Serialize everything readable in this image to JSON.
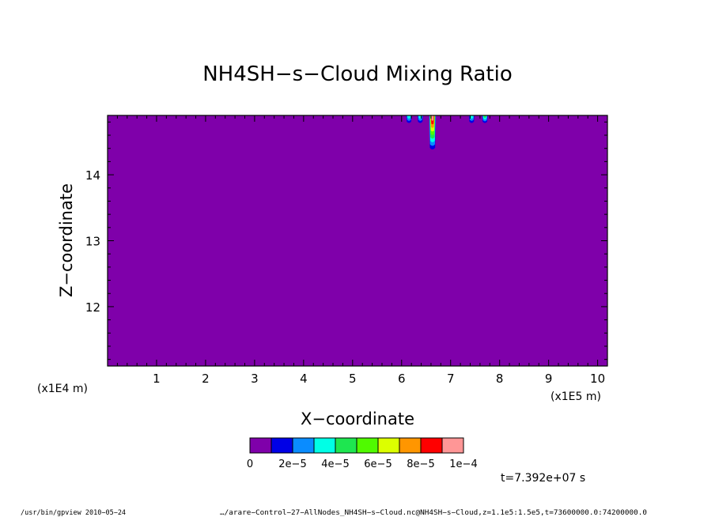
{
  "chart_data": {
    "type": "heatmap",
    "title": "NH4SH−s−Cloud Mixing Ratio",
    "xlabel": "X−coordinate",
    "ylabel": "Z−coordinate",
    "x_unit_left": "(x1E4 m)",
    "x_unit_right": "(x1E5 m)",
    "x_ticks": [
      "1",
      "2",
      "3",
      "4",
      "5",
      "6",
      "7",
      "8",
      "9",
      "10"
    ],
    "x_tick_values": [
      1,
      2,
      3,
      4,
      5,
      6,
      7,
      8,
      9,
      10
    ],
    "y_ticks": [
      "12",
      "13",
      "14"
    ],
    "y_tick_values": [
      12,
      13,
      14
    ],
    "xlim": [
      0,
      10.2
    ],
    "ylim": [
      11.1,
      14.9
    ],
    "background_color": "#7f00aa",
    "colorbar": {
      "colors": [
        "#7f00aa",
        "#0000e6",
        "#0a8cff",
        "#00ffe6",
        "#1ee650",
        "#50fa00",
        "#dcff00",
        "#ff9600",
        "#ff0000",
        "#ff9696"
      ],
      "labels": [
        "0",
        "2e−5",
        "4e−5",
        "6e−5",
        "8e−5",
        "1e−4"
      ]
    },
    "cloud_features": [
      {
        "x": 6.15,
        "top": 14.9,
        "bottom": 14.78,
        "peak_level": 3
      },
      {
        "x": 6.38,
        "top": 14.9,
        "bottom": 14.78,
        "peak_level": 3
      },
      {
        "x": 6.63,
        "top": 14.9,
        "bottom": 14.38,
        "peak_level": 9
      },
      {
        "x": 7.43,
        "top": 14.9,
        "bottom": 14.78,
        "peak_level": 3
      },
      {
        "x": 7.7,
        "top": 14.9,
        "bottom": 14.78,
        "peak_level": 4
      }
    ],
    "time_label": "t=7.392e+07 s"
  },
  "footer": {
    "left": "/usr/bin/gpview   2010−05−24",
    "right": "…/arare−Control−27−AllNodes_NH4SH−s−Cloud.nc@NH4SH−s−Cloud,z=1.1e5:1.5e5,t=73600000.0:74200000.0"
  }
}
